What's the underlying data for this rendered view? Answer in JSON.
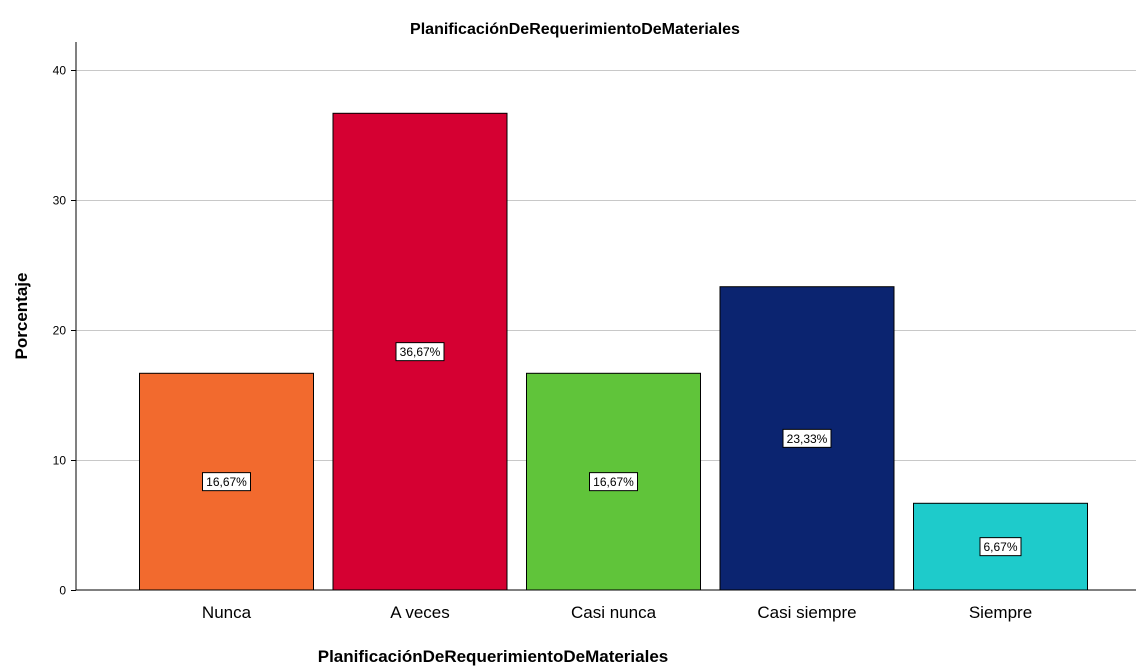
{
  "chart_data": {
    "type": "bar",
    "title": "PlanificaciónDeRequerimientoDeMateriales",
    "xlabel": "PlanificaciónDeRequerimientoDeMateriales",
    "ylabel": "Porcentaje",
    "categories": [
      "Nunca",
      "A veces",
      "Casi nunca",
      "Casi siempre",
      "Siempre"
    ],
    "values": [
      16.67,
      36.67,
      16.67,
      23.33,
      6.67
    ],
    "data_labels": [
      "16,67%",
      "36,67%",
      "16,67%",
      "23,33%",
      "6,67%"
    ],
    "colors": [
      "#f26a2e",
      "#d50032",
      "#60c43a",
      "#0b2470",
      "#1ecbcb"
    ],
    "ylim": [
      0,
      42
    ],
    "yticks": [
      0,
      10,
      20,
      30,
      40
    ],
    "ytick_labels": [
      "0",
      "10",
      "20",
      "30",
      "40"
    ],
    "grid": true
  }
}
